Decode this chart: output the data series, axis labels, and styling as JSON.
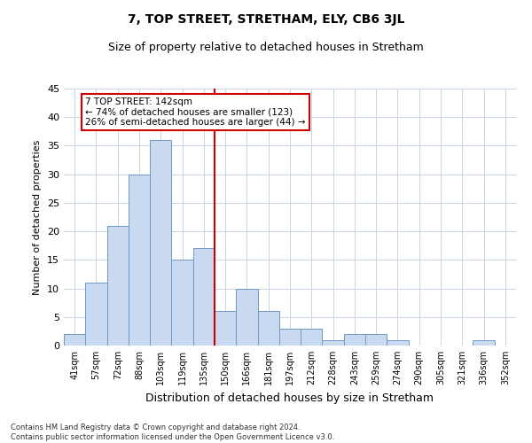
{
  "title": "7, TOP STREET, STRETHAM, ELY, CB6 3JL",
  "subtitle": "Size of property relative to detached houses in Stretham",
  "xlabel": "Distribution of detached houses by size in Stretham",
  "ylabel": "Number of detached properties",
  "categories": [
    "41sqm",
    "57sqm",
    "72sqm",
    "88sqm",
    "103sqm",
    "119sqm",
    "135sqm",
    "150sqm",
    "166sqm",
    "181sqm",
    "197sqm",
    "212sqm",
    "228sqm",
    "243sqm",
    "259sqm",
    "274sqm",
    "290sqm",
    "305sqm",
    "321sqm",
    "336sqm",
    "352sqm"
  ],
  "values": [
    2,
    11,
    21,
    30,
    36,
    15,
    17,
    6,
    10,
    6,
    3,
    3,
    1,
    2,
    2,
    1,
    0,
    0,
    0,
    1,
    0
  ],
  "bar_color": "#c9d9f0",
  "bar_edge_color": "#7098c4",
  "bar_width": 1.0,
  "vline_x": 6.5,
  "vline_color": "#cc0000",
  "ylim": [
    0,
    45
  ],
  "yticks": [
    0,
    5,
    10,
    15,
    20,
    25,
    30,
    35,
    40,
    45
  ],
  "annotation_text": "7 TOP STREET: 142sqm\n← 74% of detached houses are smaller (123)\n26% of semi-detached houses are larger (44) →",
  "annotation_box_color": "#ffffff",
  "annotation_box_edge": "#cc0000",
  "footer": "Contains HM Land Registry data © Crown copyright and database right 2024.\nContains public sector information licensed under the Open Government Licence v3.0.",
  "background_color": "#ffffff",
  "grid_color": "#c8d4e8",
  "title_fontsize": 10,
  "subtitle_fontsize": 9,
  "ylabel_fontsize": 8,
  "xlabel_fontsize": 9,
  "tick_fontsize": 7,
  "annotation_fontsize": 7.5,
  "footer_fontsize": 6
}
